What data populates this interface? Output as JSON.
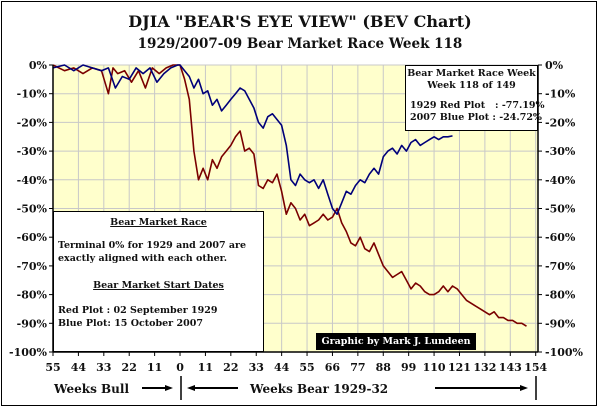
{
  "chart_data": {
    "type": "line",
    "title": "DJIA \"BEAR'S EYE VIEW\" (BEV Chart)",
    "subtitle": "1929/2007-09  Bear Market Race Week 118",
    "xlabel_left": "Weeks Bull",
    "xlabel_right": "Weeks Bear 1929-32",
    "x_tick_labels": [
      "55",
      "44",
      "33",
      "22",
      "11",
      "0",
      "11",
      "22",
      "33",
      "44",
      "55",
      "66",
      "77",
      "88",
      "99",
      "110",
      "121",
      "132",
      "143",
      "154"
    ],
    "x_ticks": [
      -55,
      -44,
      -33,
      -22,
      -11,
      0,
      11,
      22,
      33,
      44,
      55,
      66,
      77,
      88,
      99,
      110,
      121,
      132,
      143,
      154
    ],
    "xlim": [
      -55,
      155
    ],
    "y_tick_labels": [
      "0%",
      "-10%",
      "-20%",
      "-30%",
      "-40%",
      "-50%",
      "-60%",
      "-70%",
      "-80%",
      "-90%",
      "-100%"
    ],
    "y_ticks": [
      0,
      -10,
      -20,
      -30,
      -40,
      -50,
      -60,
      -70,
      -80,
      -90,
      -100
    ],
    "ylim": [
      -100,
      0
    ],
    "grid": true,
    "background": "#ffffcc",
    "series": [
      {
        "name": "1929 Red Plot",
        "color": "#7a0000",
        "x": [
          -55,
          -50,
          -46,
          -42,
          -38,
          -34,
          -31,
          -29,
          -27,
          -24,
          -21,
          -18,
          -15,
          -12,
          -9,
          -6,
          -3,
          0,
          2,
          4,
          6,
          8,
          10,
          12,
          14,
          16,
          18,
          20,
          22,
          24,
          26,
          28,
          30,
          32,
          34,
          36,
          38,
          40,
          42,
          44,
          46,
          48,
          50,
          52,
          54,
          56,
          58,
          60,
          62,
          64,
          66,
          68,
          70,
          72,
          74,
          76,
          78,
          80,
          82,
          84,
          86,
          88,
          90,
          92,
          94,
          96,
          98,
          100,
          102,
          104,
          106,
          108,
          110,
          112,
          114,
          116,
          118,
          120,
          122,
          124,
          126,
          128,
          130,
          132,
          134,
          136,
          138,
          140,
          142,
          144,
          146,
          148,
          150
        ],
        "y": [
          0,
          -2,
          -1,
          -3,
          -1,
          -2,
          -10,
          -1,
          -3,
          -2,
          -6,
          -2,
          -8,
          -1,
          -3,
          -1,
          0,
          0,
          -5,
          -12,
          -30,
          -40,
          -36,
          -40,
          -33,
          -36,
          -32,
          -30,
          -28,
          -25,
          -23,
          -30,
          -29,
          -31,
          -42,
          -43,
          -40,
          -41,
          -38,
          -44,
          -52,
          -48,
          -50,
          -54,
          -52,
          -56,
          -55,
          -54,
          -52,
          -54,
          -53,
          -50,
          -55,
          -58,
          -62,
          -63,
          -60,
          -64,
          -65,
          -62,
          -66,
          -70,
          -72,
          -74,
          -73,
          -72,
          -75,
          -78,
          -76,
          -77,
          -79,
          -80,
          -80,
          -79,
          -77,
          -79,
          -77,
          -78,
          -80,
          -82,
          -83,
          -84,
          -85,
          -86,
          -87,
          -86,
          -88,
          -88,
          -89,
          -89,
          -90,
          -90,
          -91
        ]
      },
      {
        "name": "2007 Blue Plot",
        "color": "#00007a",
        "x": [
          -55,
          -50,
          -46,
          -42,
          -38,
          -34,
          -31,
          -28,
          -25,
          -22,
          -19,
          -16,
          -13,
          -10,
          -7,
          -4,
          -1,
          0,
          2,
          4,
          6,
          8,
          10,
          12,
          14,
          16,
          18,
          20,
          22,
          24,
          26,
          28,
          30,
          32,
          34,
          36,
          38,
          40,
          42,
          44,
          46,
          48,
          50,
          52,
          54,
          56,
          58,
          60,
          62,
          64,
          66,
          68,
          70,
          72,
          74,
          76,
          78,
          80,
          82,
          84,
          86,
          88,
          90,
          92,
          94,
          96,
          98,
          100,
          102,
          104,
          106,
          108,
          110,
          112,
          114,
          116,
          118
        ],
        "y": [
          -1,
          0,
          -2,
          0,
          -1,
          -2,
          -1,
          -8,
          -4,
          -5,
          -1,
          -3,
          -1,
          -6,
          -3,
          -1,
          0,
          0,
          -2,
          -4,
          -8,
          -5,
          -10,
          -9,
          -14,
          -12,
          -16,
          -14,
          -12,
          -10,
          -8,
          -9,
          -12,
          -15,
          -20,
          -22,
          -18,
          -17,
          -19,
          -21,
          -28,
          -40,
          -42,
          -38,
          -40,
          -41,
          -40,
          -43,
          -40,
          -45,
          -50,
          -52,
          -48,
          -44,
          -45,
          -42,
          -40,
          -41,
          -38,
          -36,
          -38,
          -32,
          -30,
          -29,
          -31,
          -28,
          -30,
          -27,
          -26,
          -28,
          -27,
          -26,
          -25,
          -26,
          -25,
          -25,
          -24.72
        ]
      }
    ]
  },
  "race_box": {
    "title_line1": "Bear Market Race Week",
    "title_line2": "Week 118 of 149",
    "red_row": "1929 Red Plot   : -77.19%",
    "blue_row": "2007 Blue Plot : -24.72%"
  },
  "info_box": {
    "heading1": "Bear Market Race",
    "text1": "Terminal 0% for 1929 and 2007 are exactly aligned with each other.",
    "heading2": "Bear Market Start Dates",
    "red_line": "Red Plot :  02 September 1929",
    "blue_line": "Blue Plot:  15 October 2007"
  },
  "credit": "Graphic by Mark J. Lundeen"
}
